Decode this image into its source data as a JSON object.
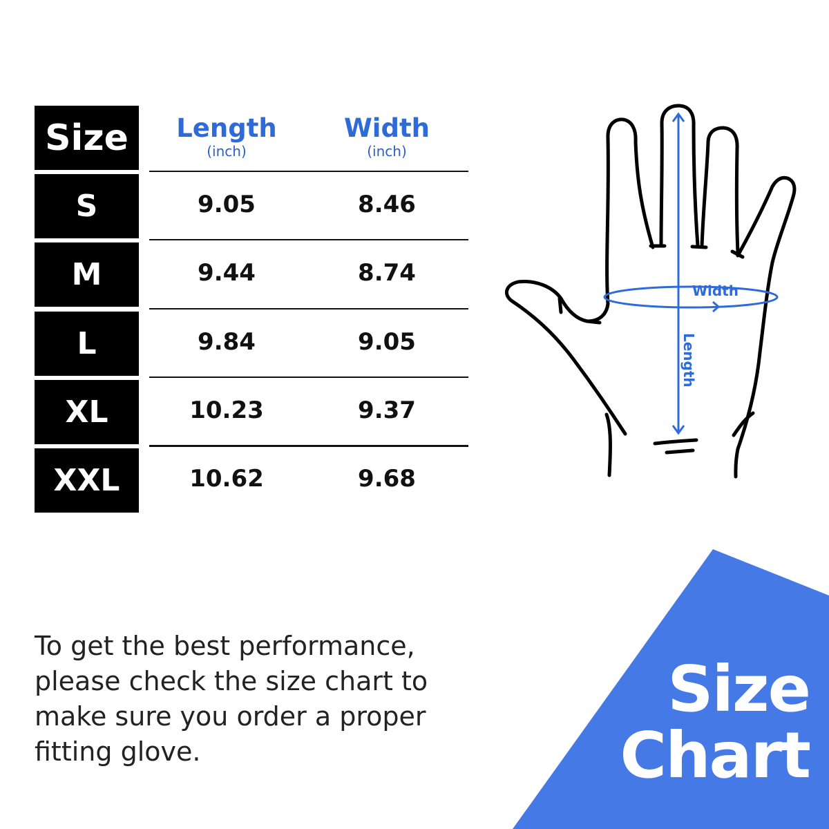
{
  "table": {
    "size_header": "Size",
    "length_header": "Length",
    "length_unit": "(inch)",
    "width_header": "Width",
    "width_unit": "(inch)",
    "rows": [
      {
        "size": "S",
        "length": "9.05",
        "width": "8.46"
      },
      {
        "size": "M",
        "length": "9.44",
        "width": "8.74"
      },
      {
        "size": "L",
        "length": "9.84",
        "width": "9.05"
      },
      {
        "size": "XL",
        "length": "10.23",
        "width": "9.37"
      },
      {
        "size": "XXL",
        "length": "10.62",
        "width": "9.68"
      }
    ]
  },
  "diagram": {
    "width_label": "Width",
    "length_label": "Length"
  },
  "note": "To get the best performance, please check the size chart to make sure you order a proper fitting glove.",
  "badge": {
    "line1": "Size",
    "line2": "Chart"
  },
  "colors": {
    "accent": "#2e6bd8",
    "badge_bg": "#4479e6",
    "cell_bg": "#000000"
  }
}
